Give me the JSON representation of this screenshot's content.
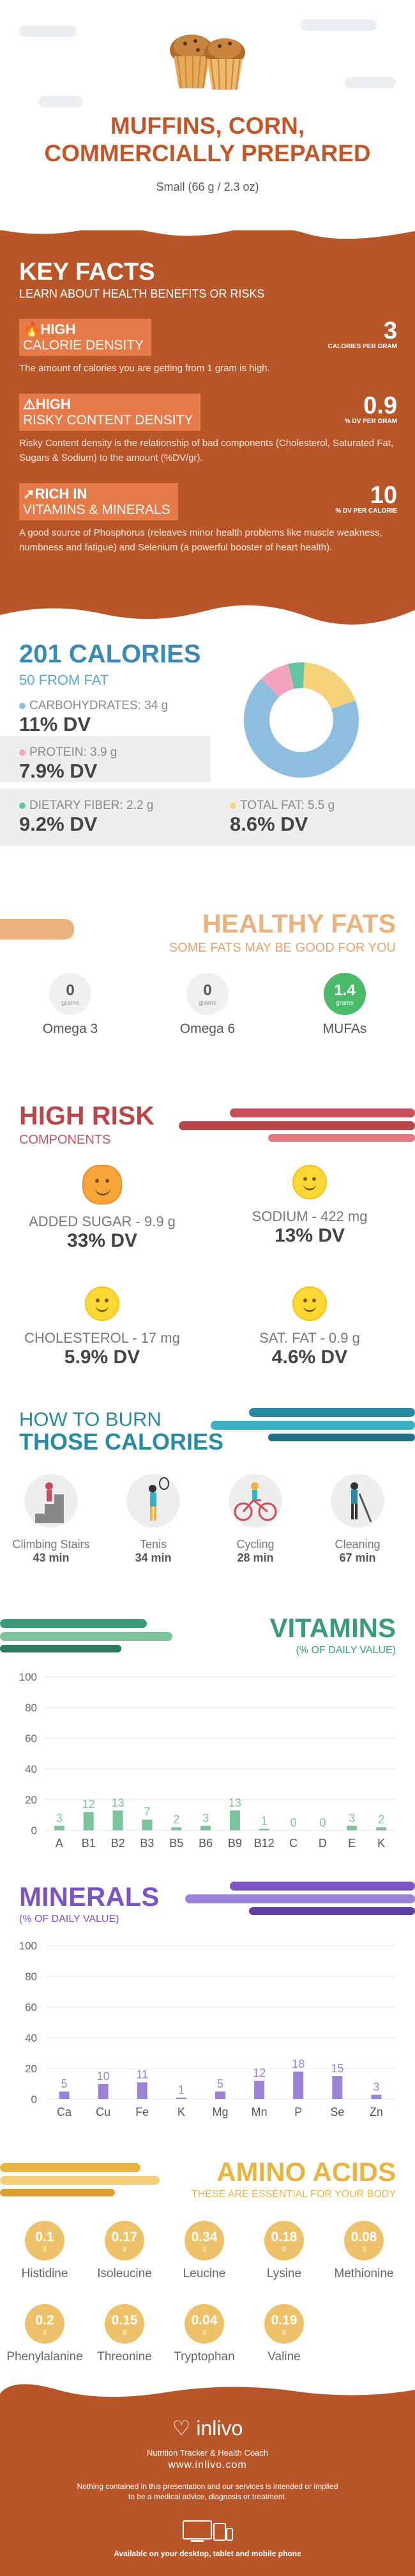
{
  "header": {
    "title_line1": "MUFFINS, CORN,",
    "title_line2": "COMMERCIALLY PREPARED",
    "serving": "Small (66 g / 2.3 oz)"
  },
  "key_facts": {
    "title": "KEY FACTS",
    "subtitle": "LEARN ABOUT HEALTH BENEFITS OR RISKS",
    "facts": [
      {
        "level": "HIGH",
        "name": "CALORIE DENSITY",
        "value": "3",
        "unit": "CALORIES PER GRAM",
        "desc": "The amount of calories you are getting from 1 gram is high."
      },
      {
        "level": "HIGH",
        "name": "RISKY CONTENT DENSITY",
        "value": "0.9",
        "unit": "% DV PER GRAM",
        "desc": "Risky Content density is the relationship of bad components (Cholesterol, Saturated Fat, Sugars & Sodium) to the amount (%DV/gr)."
      },
      {
        "level": "RICH IN",
        "name": "VITAMINS & MINERALS",
        "value": "10",
        "unit": "% DV PER CALORIE",
        "desc": "A good source of Phosphorus (releaves minor health problems like muscle weakness, numbness and fatigue) and Selenium (a powerful booster of heart health)."
      }
    ]
  },
  "calories": {
    "title": "201 CALORIES",
    "subtitle": "50 FROM FAT",
    "macros": [
      {
        "label": "CARBOHYDRATES: 34 g",
        "dv": "11% DV",
        "color": "#8dbee0"
      },
      {
        "label": "PROTEIN: 3.9 g",
        "dv": "7.9% DV",
        "color": "#f3a3c0"
      },
      {
        "label": "DIETARY FIBER: 2.2 g",
        "dv": "9.2% DV",
        "color": "#62c4a0"
      },
      {
        "label": "TOTAL FAT: 5.5 g",
        "dv": "8.6% DV",
        "color": "#f6d37a"
      }
    ]
  },
  "healthy_fats": {
    "title": "HEALTHY FATS",
    "subtitle": "SOME FATS MAY BE GOOD FOR YOU",
    "items": [
      {
        "value": "0",
        "unit": "grams",
        "name": "Omega 3"
      },
      {
        "value": "0",
        "unit": "grams",
        "name": "Omega 6"
      },
      {
        "value": "1.4",
        "unit": "grams",
        "name": "MUFAs"
      }
    ]
  },
  "high_risk": {
    "title": "HIGH RISK",
    "subtitle": "COMPONENTS",
    "items": [
      {
        "label": "ADDED SUGAR - 9.9 g",
        "dv": "33% DV"
      },
      {
        "label": "SODIUM - 422 mg",
        "dv": "13% DV"
      },
      {
        "label": "CHOLESTEROL - 17 mg",
        "dv": "5.9% DV"
      },
      {
        "label": "SAT. FAT - 0.9 g",
        "dv": "4.6% DV"
      }
    ]
  },
  "burn": {
    "title1": "HOW TO BURN",
    "title2": "THOSE CALORIES",
    "activities": [
      {
        "name": "Climbing Stairs",
        "minutes": "43 min"
      },
      {
        "name": "Tenis",
        "minutes": "34 min"
      },
      {
        "name": "Cycling",
        "minutes": "28 min"
      },
      {
        "name": "Cleaning",
        "minutes": "67 min"
      }
    ]
  },
  "vitamins": {
    "title": "VITAMINS",
    "subtitle": "(% OF DAILY VALUE)",
    "color": "#7cc49b",
    "chart_data": {
      "type": "bar",
      "categories": [
        "A",
        "B1",
        "B2",
        "B3",
        "B5",
        "B6",
        "B9",
        "B12",
        "C",
        "D",
        "E",
        "K"
      ],
      "values": [
        3,
        12,
        13,
        7,
        2,
        3,
        13,
        1,
        0,
        0,
        3,
        2
      ],
      "ylim": [
        0,
        100
      ],
      "yticks": [
        0,
        20,
        40,
        60,
        80,
        100
      ]
    }
  },
  "minerals": {
    "title": "MINERALS",
    "subtitle": "(% OF DAILY VALUE)",
    "color": "#9b82d6",
    "chart_data": {
      "type": "bar",
      "categories": [
        "Ca",
        "Cu",
        "Fe",
        "K",
        "Mg",
        "Mn",
        "P",
        "Se",
        "Zn"
      ],
      "values": [
        5,
        10,
        11,
        1,
        5,
        12,
        18,
        15,
        3
      ],
      "ylim": [
        0,
        100
      ],
      "yticks": [
        0,
        20,
        40,
        60,
        80,
        100
      ]
    }
  },
  "amino": {
    "title": "AMINO ACIDS",
    "subtitle": "THESE ARE ESSENTIAL FOR YOUR BODY",
    "items": [
      {
        "value": "0.1",
        "unit": "g",
        "name": "Histidine"
      },
      {
        "value": "0.17",
        "unit": "g",
        "name": "Isoleucine"
      },
      {
        "value": "0.34",
        "unit": "g",
        "name": "Leucine"
      },
      {
        "value": "0.18",
        "unit": "g",
        "name": "Lysine"
      },
      {
        "value": "0.08",
        "unit": "g",
        "name": "Methionine"
      },
      {
        "value": "0.2",
        "unit": "g",
        "name": "Phenylalanine"
      },
      {
        "value": "0.15",
        "unit": "g",
        "name": "Threonine"
      },
      {
        "value": "0.04",
        "unit": "g",
        "name": "Tryptophan"
      },
      {
        "value": "0.19",
        "unit": "g",
        "name": "Valine"
      }
    ]
  },
  "footer": {
    "logo": "inlivo",
    "tagline": "Nutrition Tracker & Health Coach",
    "url": "www.inlivo.com",
    "disclaimer": "Nothing contained in this presentation and our services is intended or implied to be a medical advice, diagnosis or treatment.",
    "available": "Available on your desktop, tablet and mobile phone"
  }
}
